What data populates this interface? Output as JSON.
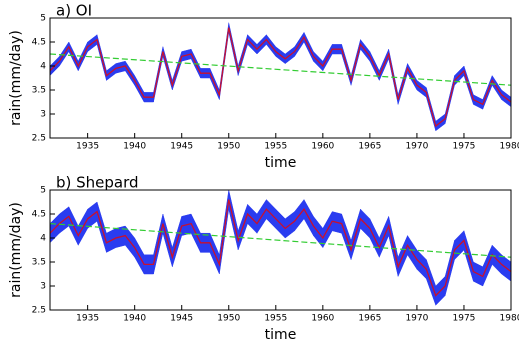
{
  "chart_data": [
    {
      "type": "band-line",
      "title": "a)  OI",
      "xlabel": "time",
      "ylabel": "rain(mm/day)",
      "x": [
        1931,
        1932,
        1933,
        1934,
        1935,
        1936,
        1937,
        1938,
        1939,
        1940,
        1941,
        1942,
        1943,
        1944,
        1945,
        1946,
        1947,
        1948,
        1949,
        1950,
        1951,
        1952,
        1953,
        1954,
        1955,
        1956,
        1957,
        1958,
        1959,
        1960,
        1961,
        1962,
        1963,
        1964,
        1965,
        1966,
        1967,
        1968,
        1969,
        1970,
        1971,
        1972,
        1973,
        1974,
        1975,
        1976,
        1977,
        1978,
        1979,
        1980
      ],
      "series": [
        {
          "color": "#c8102e",
          "values": [
            3.9,
            4.1,
            4.4,
            4.0,
            4.4,
            4.55,
            3.8,
            3.95,
            4.0,
            3.7,
            3.35,
            3.35,
            4.3,
            3.6,
            4.2,
            4.25,
            3.85,
            3.85,
            3.4,
            4.8,
            3.9,
            4.55,
            4.35,
            4.55,
            4.3,
            4.15,
            4.3,
            4.6,
            4.2,
            4.0,
            4.35,
            4.35,
            3.7,
            4.45,
            4.2,
            3.8,
            4.25,
            3.3,
            3.95,
            3.6,
            3.45,
            2.75,
            2.9,
            3.7,
            3.9,
            3.3,
            3.2,
            3.7,
            3.4,
            3.25
          ]
        }
      ],
      "band": {
        "color": "#2a3cf0",
        "upper": [
          4.0,
          4.2,
          4.5,
          4.1,
          4.5,
          4.65,
          3.9,
          4.05,
          4.1,
          3.8,
          3.45,
          3.45,
          4.4,
          3.7,
          4.3,
          4.35,
          3.95,
          3.95,
          3.5,
          4.9,
          4.0,
          4.65,
          4.45,
          4.65,
          4.4,
          4.25,
          4.4,
          4.7,
          4.3,
          4.1,
          4.45,
          4.45,
          3.8,
          4.55,
          4.3,
          3.9,
          4.35,
          3.4,
          4.05,
          3.7,
          3.55,
          2.85,
          3.0,
          3.8,
          4.0,
          3.4,
          3.3,
          3.8,
          3.5,
          3.35
        ],
        "lower": [
          3.8,
          4.0,
          4.3,
          3.9,
          4.3,
          4.45,
          3.7,
          3.85,
          3.9,
          3.6,
          3.25,
          3.25,
          4.2,
          3.5,
          4.1,
          4.15,
          3.75,
          3.75,
          3.3,
          4.7,
          3.8,
          4.45,
          4.25,
          4.45,
          4.2,
          4.05,
          4.2,
          4.5,
          4.1,
          3.9,
          4.25,
          4.25,
          3.6,
          4.35,
          4.1,
          3.7,
          4.15,
          3.2,
          3.85,
          3.5,
          3.35,
          2.65,
          2.8,
          3.6,
          3.8,
          3.2,
          3.1,
          3.6,
          3.3,
          3.15
        ]
      },
      "trend": {
        "color": "#33cc33",
        "x": [
          1931,
          1980
        ],
        "values": [
          4.25,
          3.6
        ]
      },
      "xlim": [
        1931,
        1980
      ],
      "xticks": [
        1935,
        1940,
        1945,
        1950,
        1955,
        1960,
        1965,
        1970,
        1975,
        1980
      ],
      "ylim": [
        2.5,
        5
      ],
      "yticks": [
        2.5,
        3,
        3.5,
        4,
        4.5,
        5
      ]
    },
    {
      "type": "band-line",
      "title": "b)  Shepard",
      "xlabel": "time",
      "ylabel": "rain(mm/day)",
      "x": [
        1931,
        1932,
        1933,
        1934,
        1935,
        1936,
        1937,
        1938,
        1939,
        1940,
        1941,
        1942,
        1943,
        1944,
        1945,
        1946,
        1947,
        1948,
        1949,
        1950,
        1951,
        1952,
        1953,
        1954,
        1955,
        1956,
        1957,
        1958,
        1959,
        1960,
        1961,
        1962,
        1963,
        1964,
        1965,
        1966,
        1967,
        1968,
        1969,
        1970,
        1971,
        1972,
        1973,
        1974,
        1975,
        1976,
        1977,
        1978,
        1979,
        1980
      ],
      "series": [
        {
          "color": "#c8102e",
          "values": [
            4.1,
            4.3,
            4.45,
            4.05,
            4.4,
            4.55,
            3.9,
            4.0,
            4.05,
            3.8,
            3.45,
            3.45,
            4.3,
            3.6,
            4.25,
            4.3,
            3.9,
            3.9,
            3.45,
            4.8,
            3.95,
            4.5,
            4.3,
            4.6,
            4.4,
            4.2,
            4.35,
            4.6,
            4.25,
            4.0,
            4.35,
            4.3,
            3.75,
            4.4,
            4.2,
            3.8,
            4.25,
            3.4,
            3.85,
            3.55,
            3.35,
            2.8,
            3.0,
            3.75,
            3.95,
            3.3,
            3.2,
            3.65,
            3.45,
            3.3
          ]
        }
      ],
      "band": {
        "color": "#2a3cf0",
        "upper": [
          4.3,
          4.5,
          4.65,
          4.25,
          4.6,
          4.75,
          4.1,
          4.2,
          4.25,
          4.0,
          3.65,
          3.65,
          4.5,
          3.8,
          4.45,
          4.5,
          4.1,
          4.1,
          3.65,
          5.0,
          4.15,
          4.7,
          4.5,
          4.8,
          4.6,
          4.4,
          4.55,
          4.8,
          4.45,
          4.2,
          4.55,
          4.5,
          3.95,
          4.6,
          4.4,
          4.0,
          4.45,
          3.6,
          4.05,
          3.75,
          3.55,
          3.0,
          3.2,
          3.95,
          4.15,
          3.5,
          3.4,
          3.85,
          3.65,
          3.5
        ],
        "lower": [
          3.9,
          4.1,
          4.25,
          3.85,
          4.2,
          4.35,
          3.7,
          3.8,
          3.85,
          3.6,
          3.25,
          3.25,
          4.1,
          3.4,
          4.05,
          4.1,
          3.7,
          3.7,
          3.25,
          4.6,
          3.75,
          4.3,
          4.1,
          4.4,
          4.2,
          4.0,
          4.15,
          4.4,
          4.05,
          3.8,
          4.15,
          4.1,
          3.55,
          4.2,
          4.0,
          3.6,
          4.05,
          3.2,
          3.65,
          3.35,
          3.15,
          2.6,
          2.8,
          3.55,
          3.75,
          3.1,
          3.0,
          3.45,
          3.25,
          3.1
        ]
      },
      "trend": {
        "color": "#33cc33",
        "x": [
          1931,
          1980
        ],
        "values": [
          4.3,
          3.6
        ]
      },
      "xlim": [
        1931,
        1980
      ],
      "xticks": [
        1935,
        1940,
        1945,
        1950,
        1955,
        1960,
        1965,
        1970,
        1975,
        1980
      ],
      "ylim": [
        2.5,
        5
      ],
      "yticks": [
        2.5,
        3,
        3.5,
        4,
        4.5,
        5
      ]
    }
  ]
}
